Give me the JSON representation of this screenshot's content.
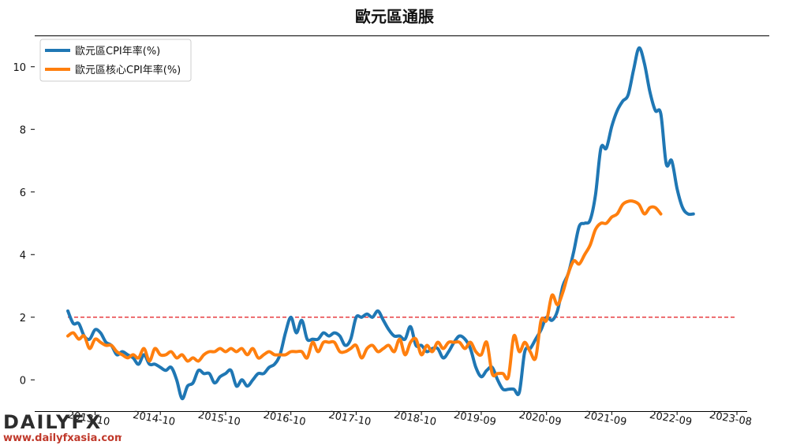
{
  "chart_data": {
    "type": "line",
    "title": "歐元區通脹",
    "xlabel": "",
    "ylabel": "",
    "x_range": [
      "2013-05",
      "2023-08"
    ],
    "ylim": [
      -1.0,
      11.0
    ],
    "y_ticks": [
      0,
      2,
      4,
      6,
      8,
      10
    ],
    "x_ticks": [
      "2013-10",
      "2014-10",
      "2015-10",
      "2016-10",
      "2017-10",
      "2018-10",
      "2019-09",
      "2020-09",
      "2021-09",
      "2022-09",
      "2023-08"
    ],
    "grid": false,
    "legend_position": "top-left",
    "reference_line": {
      "y": 2.0,
      "color": "#e31a1c",
      "style": "dashed"
    },
    "series": [
      {
        "name": "歐元區CPI年率(%)",
        "color": "#1f77b4",
        "points": [
          [
            "2013-05",
            2.2
          ],
          [
            "2013-06",
            1.8
          ],
          [
            "2013-07",
            1.8
          ],
          [
            "2013-08",
            1.4
          ],
          [
            "2013-09",
            1.3
          ],
          [
            "2013-10",
            1.6
          ],
          [
            "2013-11",
            1.5
          ],
          [
            "2013-12",
            1.2
          ],
          [
            "2014-01",
            1.1
          ],
          [
            "2014-02",
            0.8
          ],
          [
            "2014-03",
            0.9
          ],
          [
            "2014-04",
            0.8
          ],
          [
            "2014-05",
            0.7
          ],
          [
            "2014-06",
            0.5
          ],
          [
            "2014-07",
            0.8
          ],
          [
            "2014-08",
            0.5
          ],
          [
            "2014-09",
            0.5
          ],
          [
            "2014-10",
            0.4
          ],
          [
            "2014-11",
            0.3
          ],
          [
            "2014-12",
            0.4
          ],
          [
            "2015-01",
            0.0
          ],
          [
            "2015-02",
            -0.6
          ],
          [
            "2015-03",
            -0.2
          ],
          [
            "2015-04",
            -0.1
          ],
          [
            "2015-05",
            0.3
          ],
          [
            "2015-06",
            0.2
          ],
          [
            "2015-07",
            0.2
          ],
          [
            "2015-08",
            -0.1
          ],
          [
            "2015-09",
            0.1
          ],
          [
            "2015-10",
            0.2
          ],
          [
            "2015-11",
            0.3
          ],
          [
            "2015-12",
            -0.2
          ],
          [
            "2016-01",
            0.0
          ],
          [
            "2016-02",
            -0.2
          ],
          [
            "2016-03",
            0.0
          ],
          [
            "2016-04",
            0.2
          ],
          [
            "2016-05",
            0.2
          ],
          [
            "2016-06",
            0.4
          ],
          [
            "2016-07",
            0.5
          ],
          [
            "2016-08",
            0.8
          ],
          [
            "2016-09",
            1.5
          ],
          [
            "2016-10",
            2.0
          ],
          [
            "2016-11",
            1.5
          ],
          [
            "2016-12",
            1.9
          ],
          [
            "2017-01",
            1.3
          ],
          [
            "2017-02",
            1.3
          ],
          [
            "2017-03",
            1.3
          ],
          [
            "2017-04",
            1.5
          ],
          [
            "2017-05",
            1.4
          ],
          [
            "2017-06",
            1.5
          ],
          [
            "2017-07",
            1.4
          ],
          [
            "2017-08",
            1.1
          ],
          [
            "2017-09",
            1.3
          ],
          [
            "2017-10",
            2.0
          ],
          [
            "2017-11",
            2.0
          ],
          [
            "2017-12",
            2.1
          ],
          [
            "2018-01",
            2.0
          ],
          [
            "2018-02",
            2.2
          ],
          [
            "2018-03",
            1.9
          ],
          [
            "2018-04",
            1.6
          ],
          [
            "2018-05",
            1.4
          ],
          [
            "2018-06",
            1.4
          ],
          [
            "2018-07",
            1.3
          ],
          [
            "2018-08",
            1.7
          ],
          [
            "2018-09",
            1.1
          ],
          [
            "2018-10",
            1.1
          ],
          [
            "2018-11",
            0.9
          ],
          [
            "2018-12",
            1.0
          ],
          [
            "2019-01",
            1.0
          ],
          [
            "2019-02",
            0.7
          ],
          [
            "2019-03",
            0.9
          ],
          [
            "2019-04",
            1.2
          ],
          [
            "2019-05",
            1.4
          ],
          [
            "2019-06",
            1.3
          ],
          [
            "2019-07",
            1.0
          ],
          [
            "2019-08",
            0.4
          ],
          [
            "2019-09",
            0.1
          ],
          [
            "2019-10",
            0.3
          ],
          [
            "2019-11",
            0.4
          ],
          [
            "2019-12",
            0.0
          ],
          [
            "2020-01",
            -0.3
          ],
          [
            "2020-02",
            -0.3
          ],
          [
            "2020-03",
            -0.3
          ],
          [
            "2020-04",
            -0.4
          ],
          [
            "2020-05",
            0.9
          ],
          [
            "2020-06",
            1.0
          ],
          [
            "2020-07",
            1.3
          ],
          [
            "2020-08",
            1.6
          ],
          [
            "2020-09",
            2.0
          ],
          [
            "2020-10",
            1.9
          ],
          [
            "2020-11",
            2.2
          ],
          [
            "2020-12",
            3.0
          ],
          [
            "2021-01",
            3.4
          ],
          [
            "2021-02",
            4.1
          ],
          [
            "2021-03",
            4.9
          ],
          [
            "2021-04",
            5.0
          ],
          [
            "2021-05",
            5.1
          ],
          [
            "2021-06",
            5.9
          ],
          [
            "2021-07",
            7.4
          ],
          [
            "2021-08",
            7.4
          ],
          [
            "2021-09",
            8.1
          ],
          [
            "2021-10",
            8.6
          ],
          [
            "2021-11",
            8.9
          ],
          [
            "2021-12",
            9.1
          ],
          [
            "2022-01",
            9.9
          ],
          [
            "2022-02",
            10.6
          ],
          [
            "2022-03",
            10.1
          ],
          [
            "2022-04",
            9.2
          ],
          [
            "2022-05",
            8.6
          ],
          [
            "2022-06",
            8.5
          ],
          [
            "2022-07",
            6.9
          ],
          [
            "2022-08",
            7.0
          ],
          [
            "2022-09",
            6.1
          ],
          [
            "2022-10",
            5.5
          ],
          [
            "2022-11",
            5.3
          ],
          [
            "2022-12",
            5.3
          ]
        ]
      },
      {
        "name": "歐元區核心CPI年率(%)",
        "color": "#ff7f0e",
        "points": [
          [
            "2013-05",
            1.4
          ],
          [
            "2013-06",
            1.5
          ],
          [
            "2013-07",
            1.3
          ],
          [
            "2013-08",
            1.4
          ],
          [
            "2013-09",
            1.0
          ],
          [
            "2013-10",
            1.3
          ],
          [
            "2013-11",
            1.2
          ],
          [
            "2013-12",
            1.1
          ],
          [
            "2014-01",
            1.1
          ],
          [
            "2014-02",
            0.9
          ],
          [
            "2014-03",
            0.8
          ],
          [
            "2014-04",
            0.7
          ],
          [
            "2014-05",
            0.8
          ],
          [
            "2014-06",
            0.7
          ],
          [
            "2014-07",
            1.0
          ],
          [
            "2014-08",
            0.6
          ],
          [
            "2014-09",
            1.0
          ],
          [
            "2014-10",
            0.8
          ],
          [
            "2014-11",
            0.8
          ],
          [
            "2014-12",
            0.9
          ],
          [
            "2015-01",
            0.7
          ],
          [
            "2015-02",
            0.8
          ],
          [
            "2015-03",
            0.6
          ],
          [
            "2015-04",
            0.7
          ],
          [
            "2015-05",
            0.6
          ],
          [
            "2015-06",
            0.8
          ],
          [
            "2015-07",
            0.9
          ],
          [
            "2015-08",
            0.9
          ],
          [
            "2015-09",
            1.0
          ],
          [
            "2015-10",
            0.9
          ],
          [
            "2015-11",
            1.0
          ],
          [
            "2015-12",
            0.9
          ],
          [
            "2016-01",
            1.0
          ],
          [
            "2016-02",
            0.8
          ],
          [
            "2016-03",
            1.0
          ],
          [
            "2016-04",
            0.7
          ],
          [
            "2016-05",
            0.8
          ],
          [
            "2016-06",
            0.9
          ],
          [
            "2016-07",
            0.8
          ],
          [
            "2016-08",
            0.8
          ],
          [
            "2016-09",
            0.8
          ],
          [
            "2016-10",
            0.9
          ],
          [
            "2016-11",
            0.9
          ],
          [
            "2016-12",
            0.9
          ],
          [
            "2017-01",
            0.7
          ],
          [
            "2017-02",
            1.2
          ],
          [
            "2017-03",
            0.9
          ],
          [
            "2017-04",
            1.2
          ],
          [
            "2017-05",
            1.2
          ],
          [
            "2017-06",
            1.2
          ],
          [
            "2017-07",
            0.9
          ],
          [
            "2017-08",
            0.9
          ],
          [
            "2017-09",
            1.0
          ],
          [
            "2017-10",
            1.1
          ],
          [
            "2017-11",
            0.7
          ],
          [
            "2017-12",
            1.0
          ],
          [
            "2018-01",
            1.1
          ],
          [
            "2018-02",
            0.9
          ],
          [
            "2018-03",
            1.0
          ],
          [
            "2018-04",
            1.1
          ],
          [
            "2018-05",
            0.9
          ],
          [
            "2018-06",
            1.3
          ],
          [
            "2018-07",
            0.8
          ],
          [
            "2018-08",
            1.2
          ],
          [
            "2018-09",
            1.3
          ],
          [
            "2018-10",
            0.8
          ],
          [
            "2018-11",
            1.1
          ],
          [
            "2018-12",
            0.9
          ],
          [
            "2019-01",
            1.2
          ],
          [
            "2019-02",
            1.0
          ],
          [
            "2019-03",
            1.2
          ],
          [
            "2019-04",
            1.2
          ],
          [
            "2019-05",
            1.2
          ],
          [
            "2019-06",
            1.0
          ],
          [
            "2019-07",
            1.2
          ],
          [
            "2019-08",
            0.9
          ],
          [
            "2019-09",
            0.8
          ],
          [
            "2019-10",
            1.2
          ],
          [
            "2019-11",
            0.2
          ],
          [
            "2019-12",
            0.2
          ],
          [
            "2020-01",
            0.2
          ],
          [
            "2020-02",
            0.1
          ],
          [
            "2020-03",
            1.4
          ],
          [
            "2020-04",
            0.9
          ],
          [
            "2020-05",
            1.2
          ],
          [
            "2020-06",
            0.9
          ],
          [
            "2020-07",
            0.7
          ],
          [
            "2020-08",
            1.9
          ],
          [
            "2020-09",
            1.9
          ],
          [
            "2020-10",
            2.7
          ],
          [
            "2020-11",
            2.4
          ],
          [
            "2020-12",
            2.8
          ],
          [
            "2021-01",
            3.4
          ],
          [
            "2021-02",
            3.8
          ],
          [
            "2021-03",
            3.7
          ],
          [
            "2021-04",
            4.0
          ],
          [
            "2021-05",
            4.3
          ],
          [
            "2021-06",
            4.8
          ],
          [
            "2021-07",
            5.0
          ],
          [
            "2021-08",
            5.0
          ],
          [
            "2021-09",
            5.2
          ],
          [
            "2021-10",
            5.3
          ],
          [
            "2021-11",
            5.6
          ],
          [
            "2021-12",
            5.7
          ],
          [
            "2022-01",
            5.7
          ],
          [
            "2022-02",
            5.6
          ],
          [
            "2022-03",
            5.3
          ],
          [
            "2022-04",
            5.5
          ],
          [
            "2022-05",
            5.5
          ],
          [
            "2022-06",
            5.3
          ]
        ]
      }
    ]
  },
  "watermark": {
    "brand": "DAILYFX",
    "url": "www.dailyfxasia.com"
  }
}
